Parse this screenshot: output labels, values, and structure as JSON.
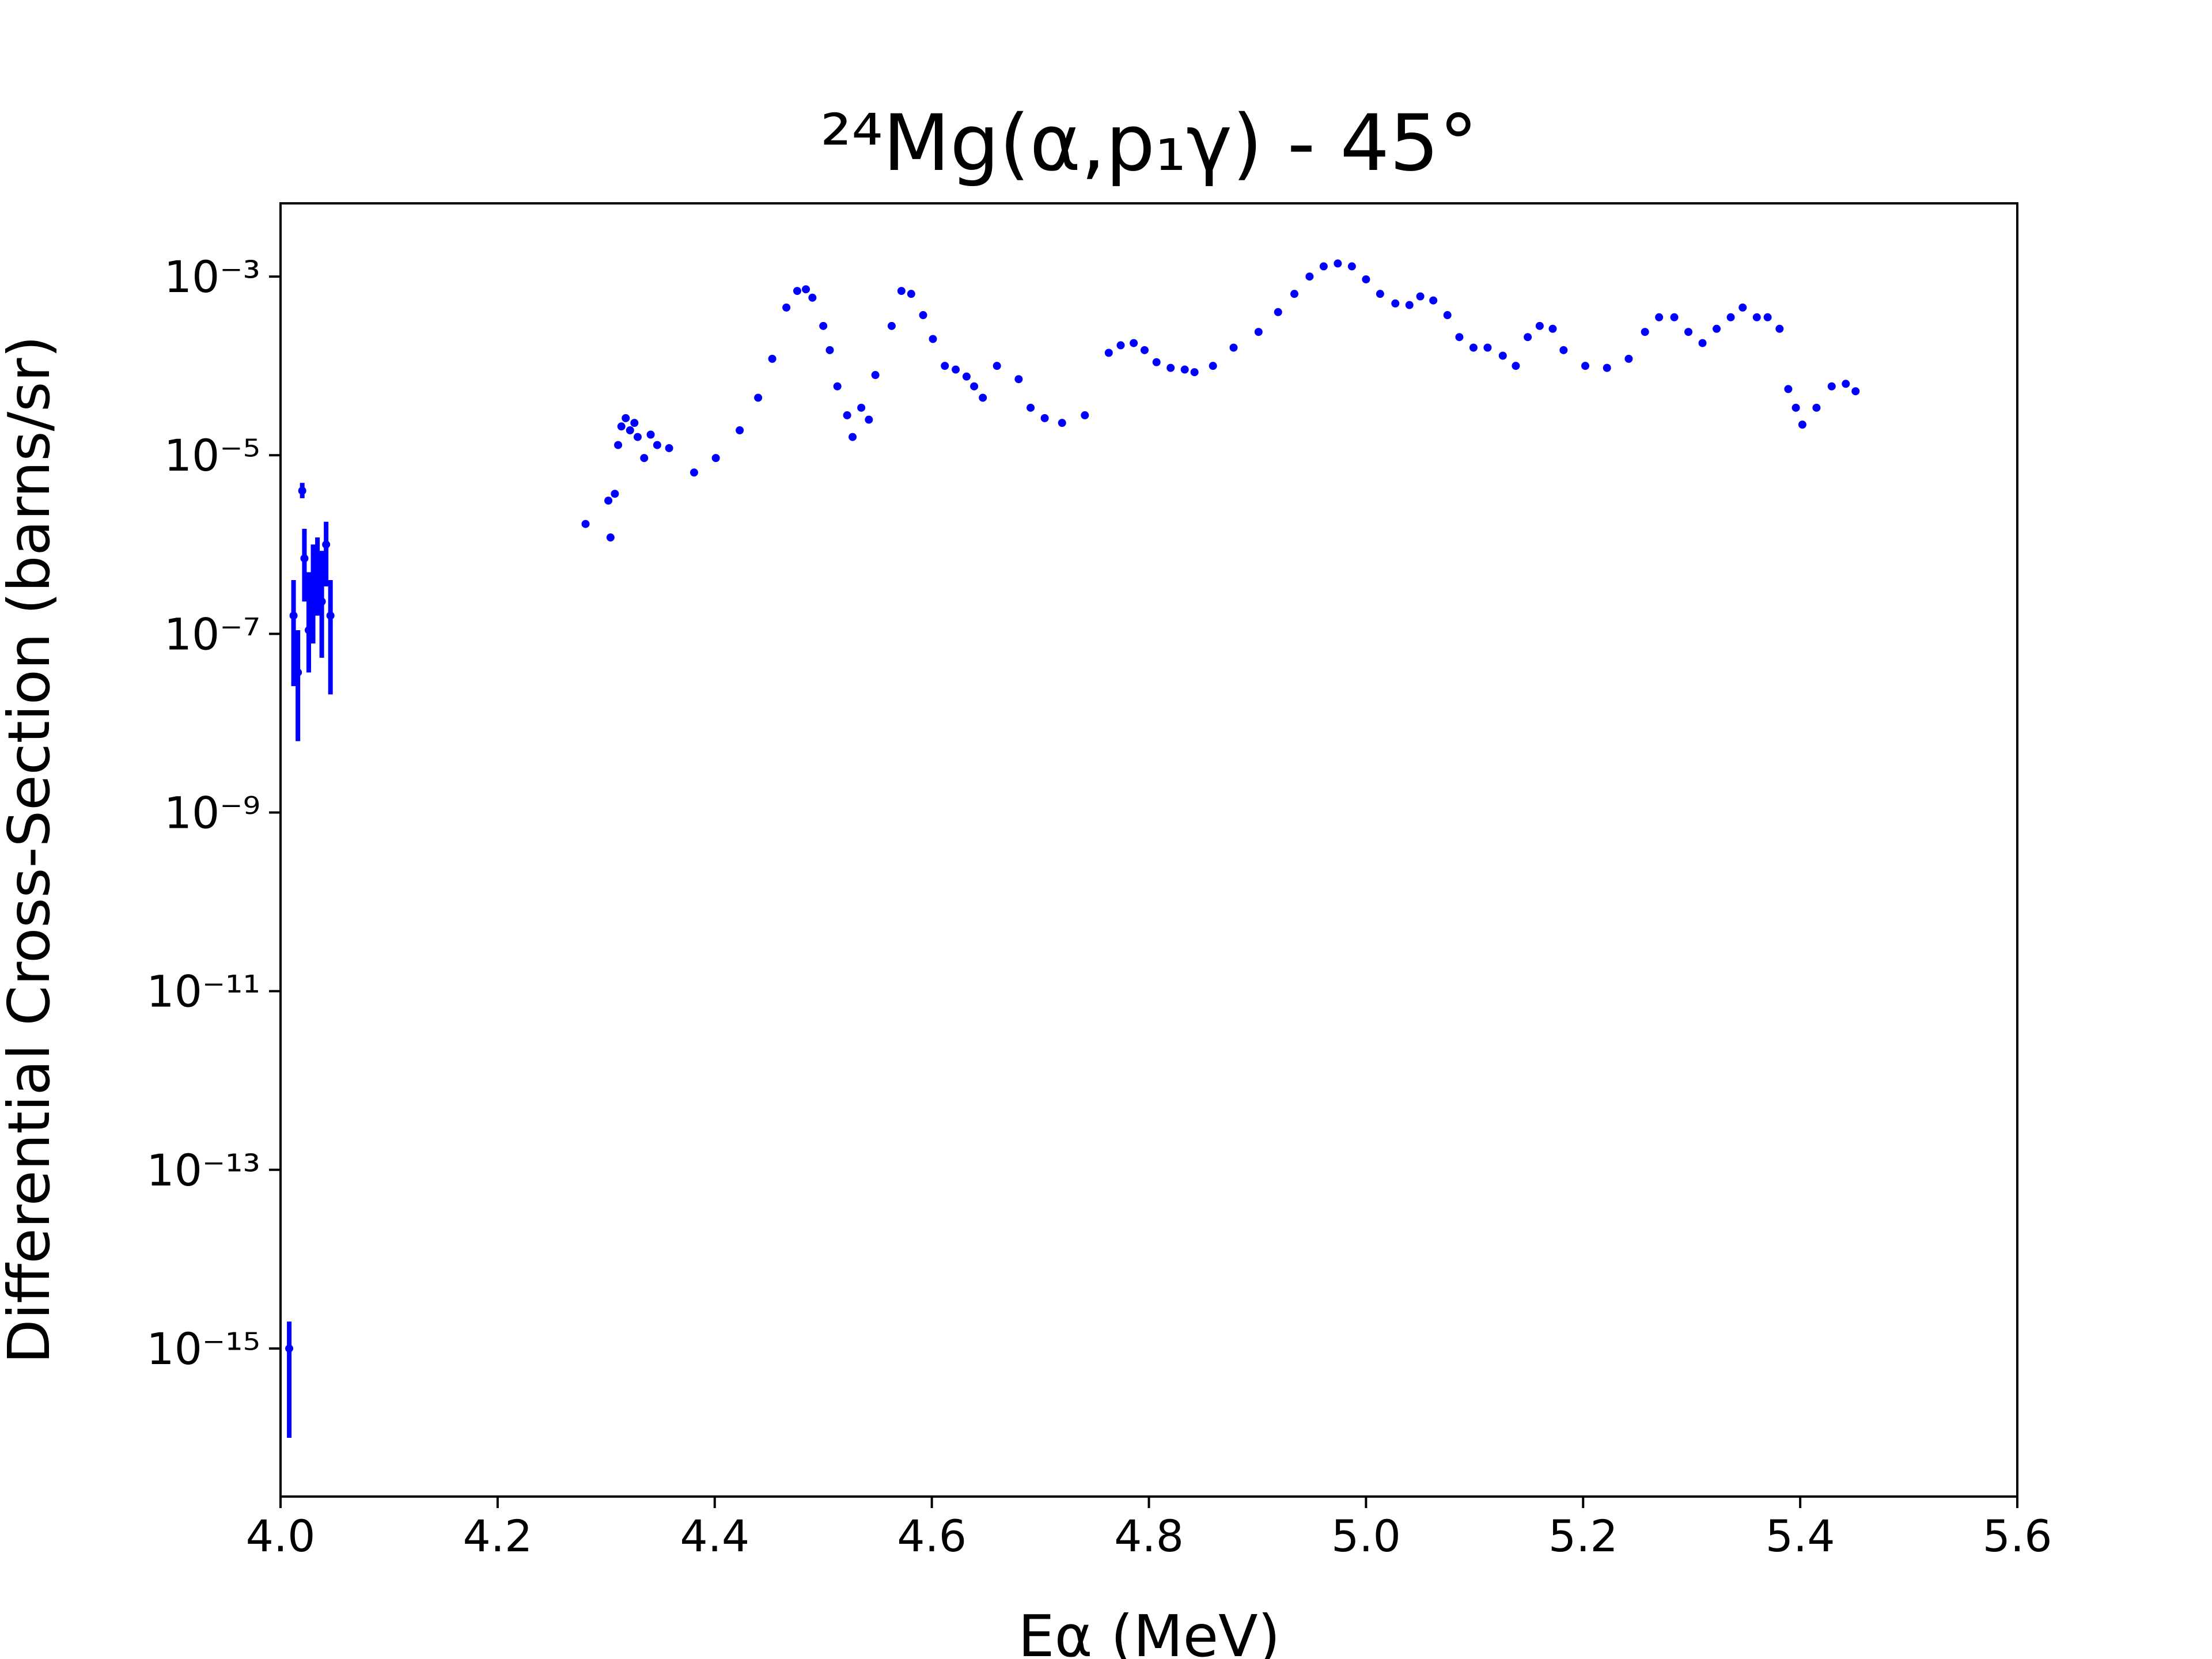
{
  "chart_data": {
    "type": "scatter",
    "title": "²⁴Mg(α,p₁γ) - 45°",
    "xlabel": "Eα (MeV)",
    "ylabel": "Differential Cross-Section (barns/sr)",
    "log_y": true,
    "xlim": [
      4.0,
      5.6
    ],
    "ylim": [
      2.2e-17,
      0.0066
    ],
    "xticks": [
      {
        "value": 4.0,
        "label": "4.0"
      },
      4.2,
      4.4,
      4.6,
      4.8,
      {
        "value": 5.0,
        "label": "5.0"
      },
      5.2,
      5.4,
      5.6
    ],
    "yticks": [
      {
        "value": 1e-15,
        "label": "10⁻¹⁵"
      },
      {
        "value": 1e-13,
        "label": "10⁻¹³"
      },
      {
        "value": 1e-11,
        "label": "10⁻¹¹"
      },
      {
        "value": 1e-09,
        "label": "10⁻⁹"
      },
      {
        "value": 1e-07,
        "label": "10⁻⁷"
      },
      {
        "value": 1e-05,
        "label": "10⁻⁵"
      },
      {
        "value": 0.001,
        "label": "10⁻³"
      }
    ],
    "series": [
      {
        "color": "#0000ff",
        "x": [
          4.008,
          4.012,
          4.016,
          4.02,
          4.022,
          4.026,
          4.03,
          4.034,
          4.038,
          4.042,
          4.046,
          4.281,
          4.302,
          4.304,
          4.308,
          4.311,
          4.314,
          4.318,
          4.322,
          4.326,
          4.329,
          4.335,
          4.341,
          4.347,
          4.358,
          4.381,
          4.401,
          4.423,
          4.44,
          4.453,
          4.466,
          4.476,
          4.484,
          4.49,
          4.5,
          4.506,
          4.513,
          4.522,
          4.527,
          4.535,
          4.542,
          4.548,
          4.563,
          4.572,
          4.581,
          4.592,
          4.601,
          4.612,
          4.622,
          4.632,
          4.639,
          4.647,
          4.66,
          4.68,
          4.691,
          4.704,
          4.72,
          4.741,
          4.763,
          4.774,
          4.786,
          4.796,
          4.807,
          4.82,
          4.833,
          4.842,
          4.859,
          4.878,
          4.901,
          4.919,
          4.934,
          4.948,
          4.961,
          4.974,
          4.987,
          5.0,
          5.013,
          5.027,
          5.04,
          5.05,
          5.062,
          5.075,
          5.086,
          5.099,
          5.112,
          5.126,
          5.138,
          5.149,
          5.16,
          5.172,
          5.182,
          5.202,
          5.222,
          5.242,
          5.257,
          5.27,
          5.284,
          5.297,
          5.31,
          5.323,
          5.336,
          5.347,
          5.36,
          5.37,
          5.381,
          5.389,
          5.396,
          5.402,
          5.415,
          5.429,
          5.442,
          5.451
        ],
        "values": [
          1e-15,
          1.6e-07,
          3.7e-08,
          4e-06,
          7e-07,
          1.1e-07,
          3.4e-07,
          5.9e-07,
          2.3e-07,
          1e-06,
          1.6e-07,
          1.7e-06,
          3.1e-06,
          1.2e-06,
          3.7e-06,
          1.3e-05,
          2.1e-05,
          2.6e-05,
          1.9e-05,
          2.3e-05,
          1.6e-05,
          9.3e-06,
          1.7e-05,
          1.3e-05,
          1.2e-05,
          6.4e-06,
          9.3e-06,
          1.9e-05,
          4.4e-05,
          0.00012,
          0.00045,
          0.00069,
          0.00072,
          0.00058,
          0.00028,
          0.00015,
          5.9e-05,
          2.8e-05,
          1.6e-05,
          3.4e-05,
          2.5e-05,
          7.9e-05,
          0.00028,
          0.00069,
          0.00064,
          0.00037,
          0.0002,
          0.0001,
          9.1e-05,
          7.6e-05,
          5.9e-05,
          4.4e-05,
          0.0001,
          7.1e-05,
          3.4e-05,
          2.6e-05,
          2.3e-05,
          2.8e-05,
          0.00014,
          0.00017,
          0.00018,
          0.00015,
          0.00011,
          9.5e-05,
          9.1e-05,
          8.5e-05,
          0.0001,
          0.00016,
          0.00024,
          0.0004,
          0.00064,
          0.001,
          0.0013,
          0.0014,
          0.0013,
          0.00093,
          0.00064,
          0.0005,
          0.00048,
          0.0006,
          0.00054,
          0.00037,
          0.00021,
          0.00016,
          0.00016,
          0.00013,
          0.0001,
          0.00021,
          0.00028,
          0.00026,
          0.00015,
          0.0001,
          9.5e-05,
          0.00012,
          0.00024,
          0.00035,
          0.00035,
          0.00024,
          0.00018,
          0.00026,
          0.00035,
          0.00045,
          0.00035,
          0.00035,
          0.00026,
          5.5e-05,
          3.4e-05,
          2.2e-05,
          3.4e-05,
          5.9e-05,
          6.3e-05,
          5.2e-05
        ],
        "yerr_low": [
          1e-16,
          2.6e-08,
          6.3e-09,
          3.3e-06,
          2.3e-07,
          3.7e-08,
          7.8e-08,
          1.6e-07,
          5.4e-08,
          3.4e-07,
          2.1e-08,
          null,
          null,
          null,
          null,
          null,
          null,
          null,
          null,
          null,
          null,
          null,
          null,
          null,
          null,
          null,
          null,
          null,
          null,
          null,
          null,
          null,
          null,
          null,
          null,
          null,
          null,
          null,
          null,
          null,
          null,
          null,
          null,
          null,
          null,
          null,
          null,
          null,
          null,
          null,
          null,
          null,
          null,
          null,
          null,
          null,
          null,
          null,
          null,
          null,
          null,
          null,
          null,
          null,
          null,
          null,
          null,
          null,
          null,
          null,
          null,
          null,
          null,
          null,
          null,
          null,
          null,
          null,
          null,
          null,
          null,
          null,
          null,
          null,
          null,
          null,
          null,
          null,
          null,
          null,
          null,
          null,
          null,
          null,
          null,
          null,
          null,
          null,
          null,
          null,
          null,
          null,
          null,
          null,
          null,
          null,
          null,
          null,
          null,
          null,
          null,
          null
        ],
        "yerr_high": [
          2e-15,
          4e-07,
          1.1e-07,
          4.9e-06,
          1.5e-06,
          4.9e-07,
          1e-06,
          1.2e-06,
          8.5e-07,
          1.8e-06,
          4e-07,
          null,
          null,
          null,
          null,
          null,
          null,
          null,
          null,
          null,
          null,
          null,
          null,
          null,
          null,
          null,
          null,
          null,
          null,
          null,
          null,
          null,
          null,
          null,
          null,
          null,
          null,
          null,
          null,
          null,
          null,
          null,
          null,
          null,
          null,
          null,
          null,
          null,
          null,
          null,
          null,
          null,
          null,
          null,
          null,
          null,
          null,
          null,
          null,
          null,
          null,
          null,
          null,
          null,
          null,
          null,
          null,
          null,
          null,
          null,
          null,
          null,
          null,
          null,
          null,
          null,
          null,
          null,
          null,
          null,
          null,
          null,
          null,
          null,
          null,
          null,
          null,
          null,
          null,
          null,
          null,
          null,
          null,
          null,
          null,
          null,
          null,
          null,
          null,
          null,
          null,
          null,
          null,
          null,
          null,
          null,
          null,
          null,
          null,
          null,
          null,
          null
        ]
      }
    ]
  }
}
